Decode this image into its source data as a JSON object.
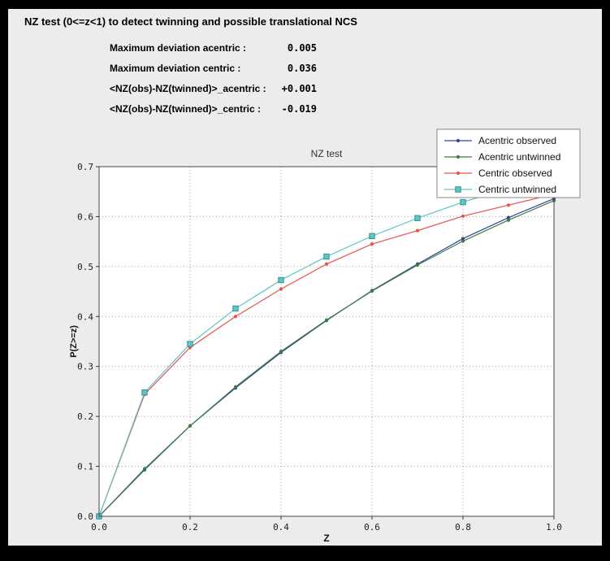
{
  "frame": {
    "border_color": "#000000",
    "background_color": "#ececec"
  },
  "header": {
    "title": "NZ test (0<=z<1) to detect twinning and possible translational NCS",
    "stats": [
      {
        "label": "Maximum deviation acentric :",
        "value": "0.005"
      },
      {
        "label": "Maximum deviation centric :",
        "value": "0.036"
      },
      {
        "label": "<NZ(obs)-NZ(twinned)>_acentric :",
        "value": "+0.001"
      },
      {
        "label": "<NZ(obs)-NZ(twinned)>_centric :",
        "value": "-0.019"
      }
    ]
  },
  "chart_data": {
    "type": "line",
    "title": "NZ test",
    "xlabel": "Z",
    "ylabel": "P(Z>=z)",
    "xlim": [
      0.0,
      1.0
    ],
    "ylim": [
      0.0,
      0.7
    ],
    "xticks": [
      0.0,
      0.2,
      0.4,
      0.6,
      0.8,
      1.0
    ],
    "yticks": [
      0.0,
      0.1,
      0.2,
      0.3,
      0.4,
      0.5,
      0.6,
      0.7
    ],
    "grid": true,
    "legend_position": "top-right",
    "x": [
      0.0,
      0.1,
      0.2,
      0.3,
      0.4,
      0.5,
      0.6,
      0.7,
      0.8,
      0.9,
      1.0
    ],
    "series": [
      {
        "name": "Acentric observed",
        "color": "#3142a0",
        "edge": "#3142a0",
        "marker": "circle",
        "values": [
          0.0,
          0.093,
          0.181,
          0.257,
          0.328,
          0.392,
          0.452,
          0.505,
          0.556,
          0.598,
          0.636
        ]
      },
      {
        "name": "Acentric untwinned",
        "color": "#3f7d3f",
        "edge": "#3f7d3f",
        "marker": "circle",
        "values": [
          0.0,
          0.095,
          0.181,
          0.259,
          0.33,
          0.393,
          0.451,
          0.503,
          0.551,
          0.593,
          0.632
        ]
      },
      {
        "name": "Centric observed",
        "color": "#e8544d",
        "edge": "#e8544d",
        "marker": "circle",
        "values": [
          0.0,
          0.244,
          0.338,
          0.4,
          0.455,
          0.505,
          0.545,
          0.572,
          0.601,
          0.623,
          0.645
        ]
      },
      {
        "name": "Centric untwinned",
        "color": "#62c4c4",
        "edge": "#2f9296",
        "marker": "square",
        "values": [
          0.0,
          0.248,
          0.345,
          0.416,
          0.473,
          0.52,
          0.561,
          0.597,
          0.629,
          0.657,
          0.683
        ]
      }
    ]
  }
}
